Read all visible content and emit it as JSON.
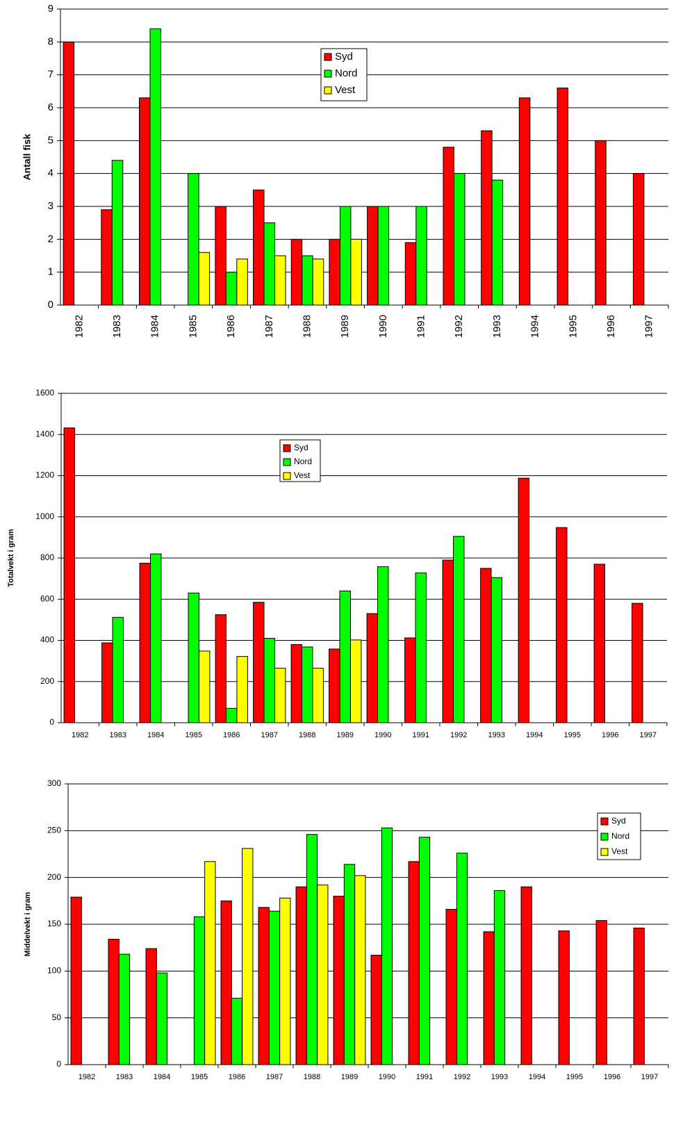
{
  "chart_data": [
    {
      "type": "bar",
      "y_label": "Antall fisk",
      "categories": [
        "1982",
        "1983",
        "1984",
        "1985",
        "1986",
        "1987",
        "1988",
        "1989",
        "1990",
        "1991",
        "1992",
        "1993",
        "1994",
        "1995",
        "1996",
        "1997"
      ],
      "series": [
        {
          "name": "Syd",
          "color": "#ff0000",
          "values": [
            8,
            2.9,
            6.3,
            null,
            3,
            3.5,
            2,
            2,
            3,
            1.9,
            4.8,
            5.3,
            6.3,
            6.6,
            5,
            4
          ]
        },
        {
          "name": "Nord",
          "color": "#00ff00",
          "values": [
            null,
            4.4,
            8.4,
            4,
            1,
            2.5,
            1.5,
            3,
            3,
            3,
            4,
            3.8,
            null,
            null,
            null,
            null
          ]
        },
        {
          "name": "Vest",
          "color": "#ffff00",
          "values": [
            null,
            null,
            null,
            1.6,
            1.4,
            1.5,
            1.4,
            2,
            null,
            null,
            null,
            null,
            null,
            null,
            null,
            null
          ]
        }
      ],
      "ylim": [
        0,
        9
      ],
      "yticks": [
        0,
        1,
        2,
        3,
        4,
        5,
        6,
        7,
        8,
        9
      ],
      "grid": true
    },
    {
      "type": "bar",
      "y_label": "Totalvekt i gram",
      "categories": [
        "1982",
        "1983",
        "1984",
        "1985",
        "1986",
        "1987",
        "1988",
        "1989",
        "1990",
        "1991",
        "1992",
        "1993",
        "1994",
        "1995",
        "1996",
        "1997"
      ],
      "series": [
        {
          "name": "Syd",
          "color": "#ff0000",
          "values": [
            1432,
            388,
            775,
            null,
            525,
            585,
            380,
            358,
            530,
            412,
            790,
            750,
            1188,
            948,
            770,
            580
          ]
        },
        {
          "name": "Nord",
          "color": "#00ff00",
          "values": [
            null,
            512,
            820,
            630,
            70,
            410,
            368,
            640,
            758,
            728,
            905,
            705,
            null,
            null,
            null,
            null
          ]
        },
        {
          "name": "Vest",
          "color": "#ffff00",
          "values": [
            null,
            null,
            null,
            348,
            322,
            265,
            265,
            402,
            null,
            null,
            null,
            null,
            null,
            null,
            null,
            null
          ]
        }
      ],
      "ylim": [
        0,
        1600
      ],
      "yticks": [
        0,
        200,
        400,
        600,
        800,
        1000,
        1200,
        1400,
        1600
      ],
      "grid": true
    },
    {
      "type": "bar",
      "y_label": "Middelvekt i gram",
      "categories": [
        "1982",
        "1983",
        "1984",
        "1985",
        "1986",
        "1987",
        "1988",
        "1989",
        "1990",
        "1991",
        "1992",
        "1993",
        "1994",
        "1995",
        "1996",
        "1997"
      ],
      "series": [
        {
          "name": "Syd",
          "color": "#ff0000",
          "values": [
            179,
            134,
            124,
            null,
            175,
            168,
            190,
            180,
            117,
            217,
            166,
            142,
            190,
            143,
            154,
            146
          ]
        },
        {
          "name": "Nord",
          "color": "#00ff00",
          "values": [
            null,
            118,
            98,
            158,
            71,
            164,
            246,
            214,
            253,
            243,
            226,
            186,
            null,
            null,
            null,
            null
          ]
        },
        {
          "name": "Vest",
          "color": "#ffff00",
          "values": [
            null,
            null,
            null,
            217,
            231,
            178,
            192,
            202,
            null,
            null,
            null,
            null,
            null,
            null,
            null,
            null
          ]
        }
      ],
      "ylim": [
        0,
        300
      ],
      "yticks": [
        0,
        50,
        100,
        150,
        200,
        250,
        300
      ],
      "grid": true
    }
  ]
}
